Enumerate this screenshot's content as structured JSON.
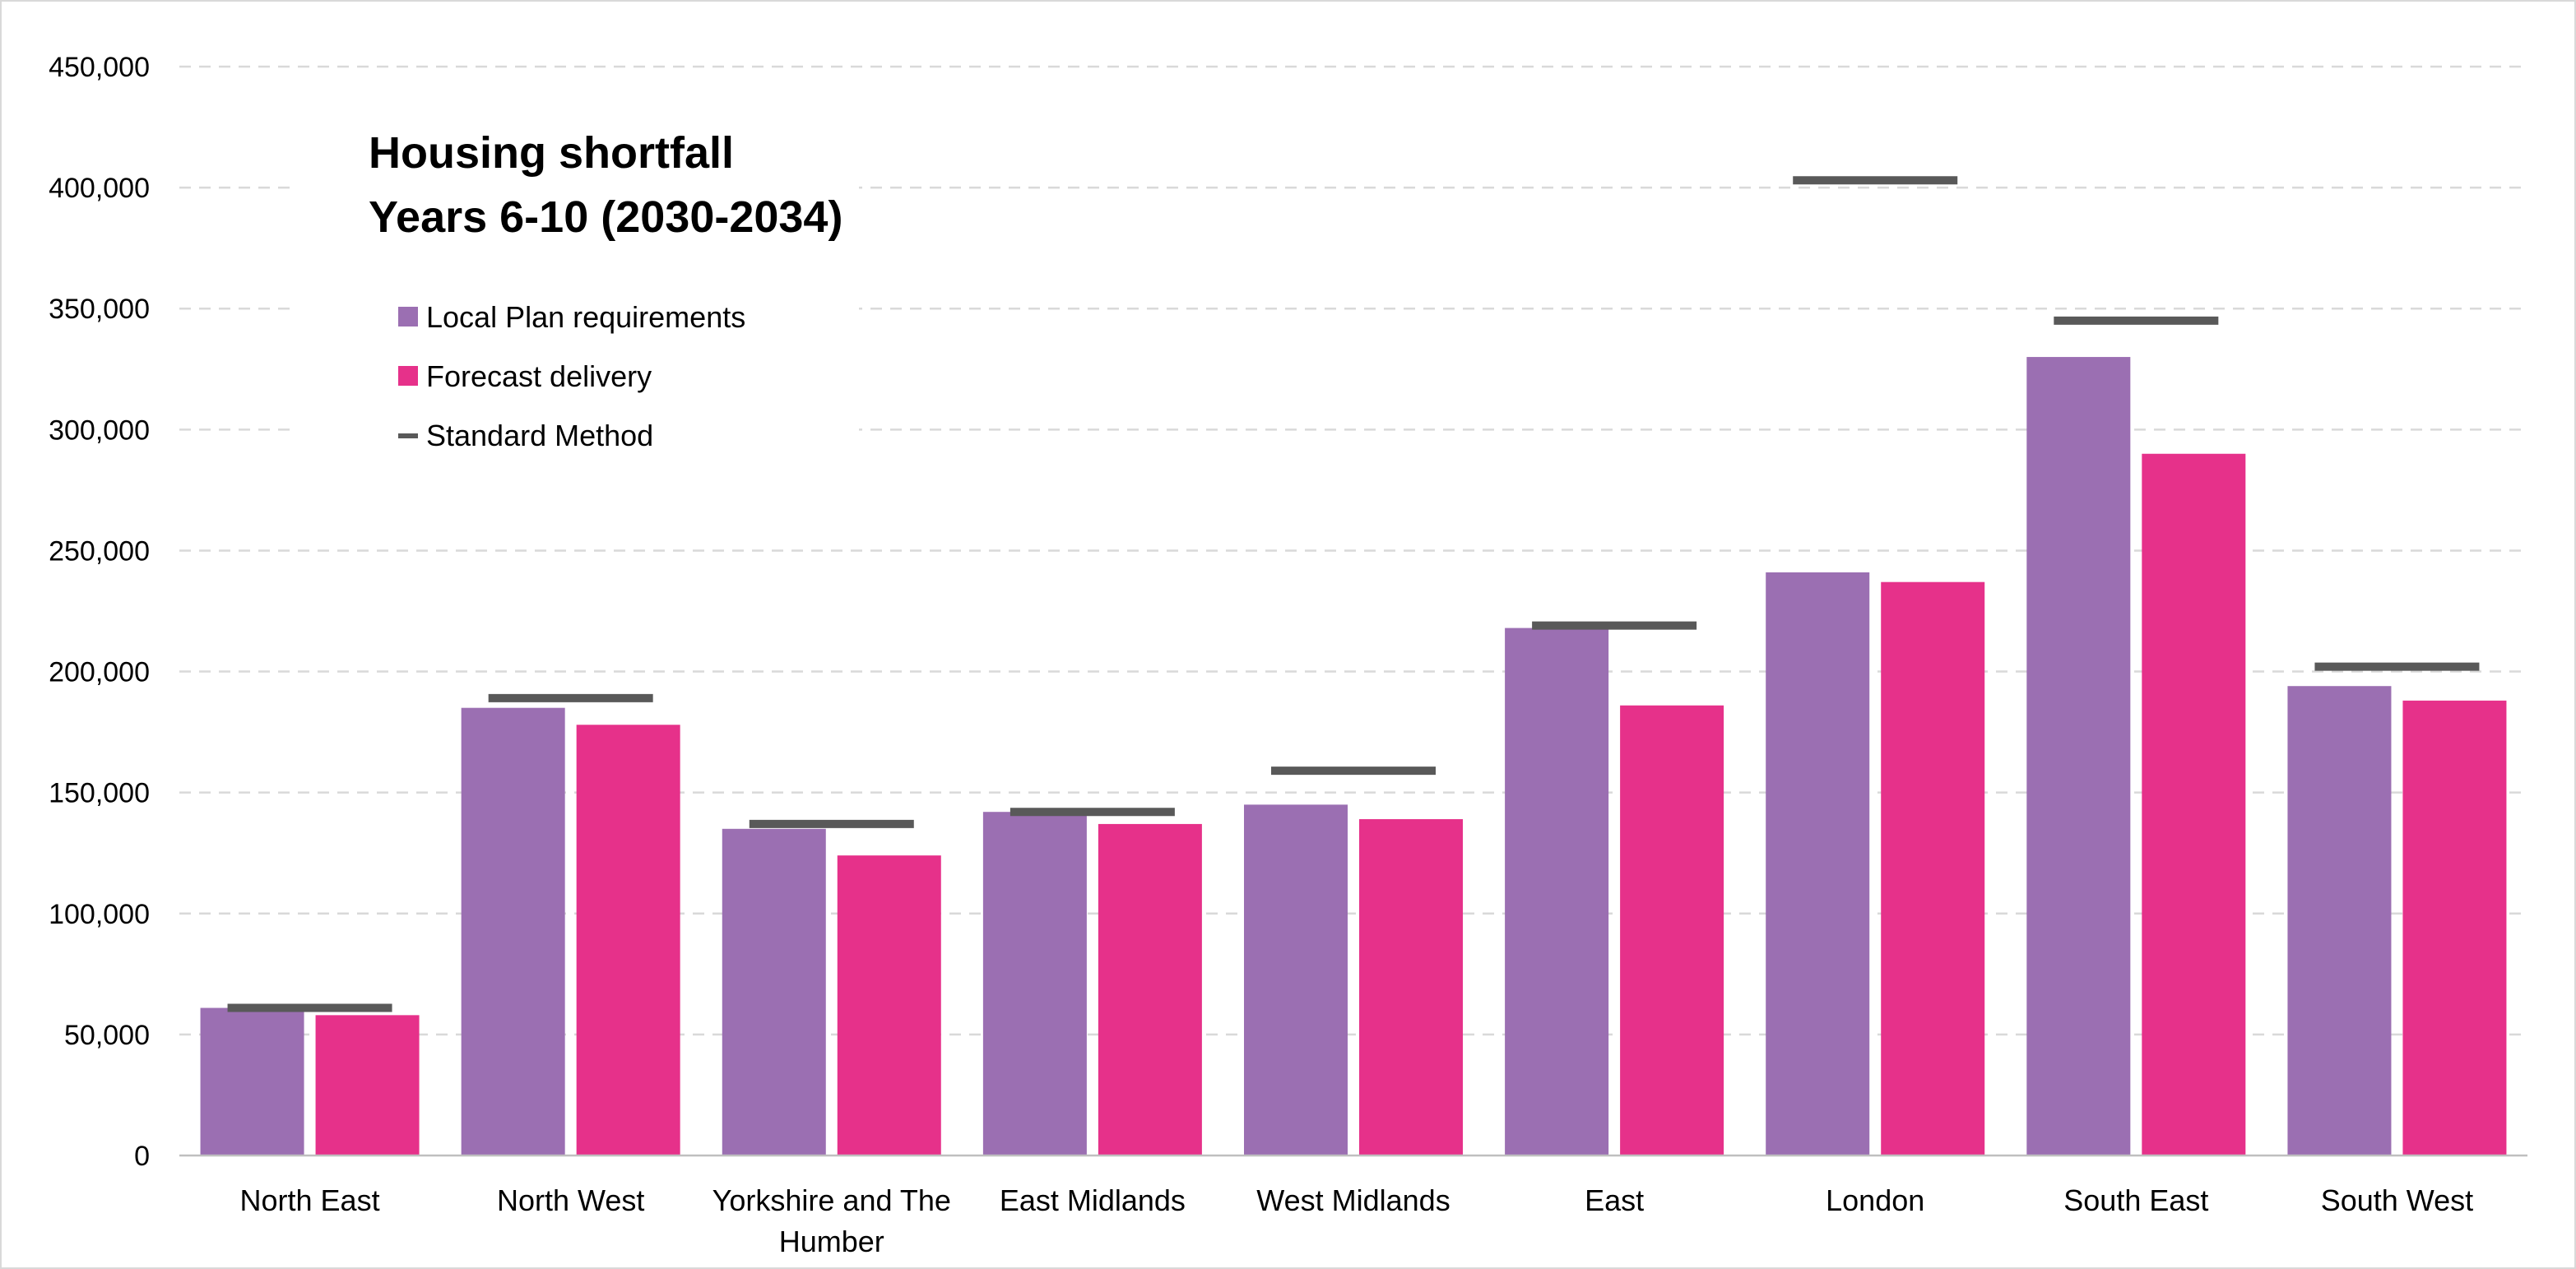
{
  "chart_data": {
    "type": "bar",
    "title": [
      "Housing shortfall",
      "Years 6-10 (2030-2034)"
    ],
    "categories": [
      "North East",
      "North West",
      "Yorkshire and The Humber",
      "East Midlands",
      "West Midlands",
      "East",
      "London",
      "South East",
      "South West"
    ],
    "series": [
      {
        "name": "Local Plan requirements",
        "type": "bar",
        "color": "#9b6fb2",
        "values": [
          61000,
          185000,
          135000,
          142000,
          145000,
          218000,
          241000,
          330000,
          194000
        ]
      },
      {
        "name": "Forecast delivery",
        "type": "bar",
        "color": "#e6318a",
        "values": [
          58000,
          178000,
          124000,
          137000,
          139000,
          186000,
          237000,
          290000,
          188000
        ]
      },
      {
        "name": "Standard Method",
        "type": "marker-line",
        "color": "#595959",
        "values": [
          61000,
          189000,
          137000,
          142000,
          159000,
          219000,
          403000,
          345000,
          202000
        ]
      }
    ],
    "yticks": [
      "0",
      "50,000",
      "100,000",
      "150,000",
      "200,000",
      "250,000",
      "300,000",
      "350,000",
      "400,000",
      "450,000"
    ],
    "ylim": [
      0,
      450000
    ],
    "grid": true,
    "legend_position": "top-left"
  }
}
